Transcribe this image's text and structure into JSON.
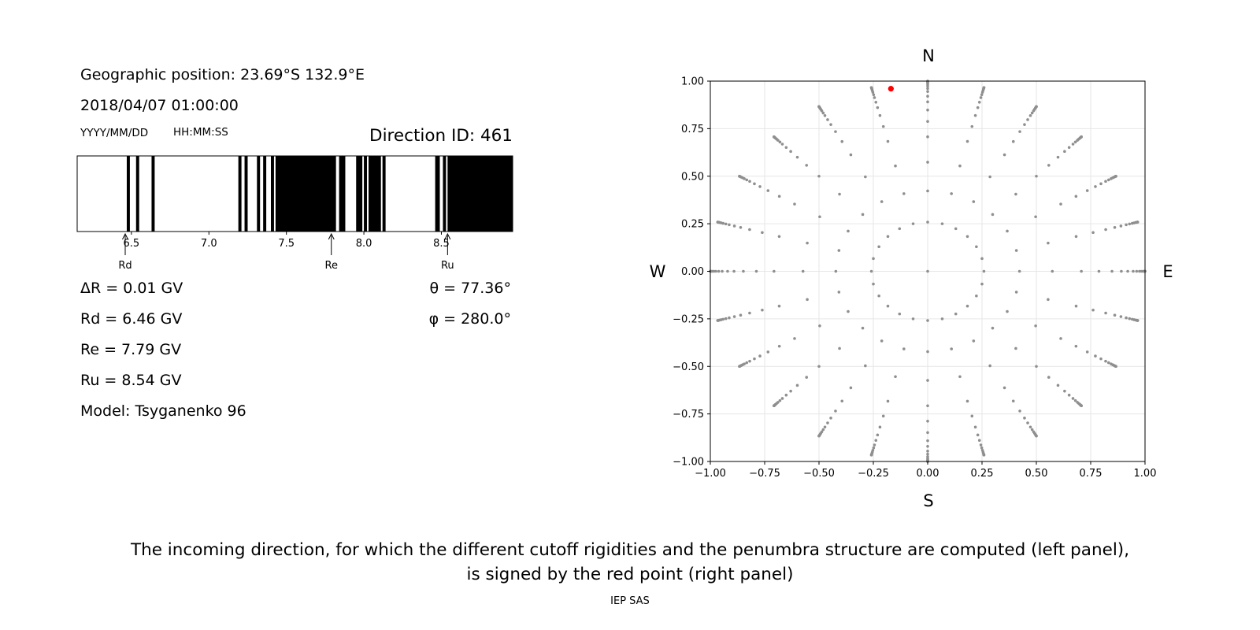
{
  "info": {
    "geo_position": "Geographic position: 23.69°S 132.9°E",
    "datetime": "2018/04/07 01:00:00",
    "date_format": "YYYY/MM/DD",
    "time_format": "HH:MM:SS",
    "direction_id": "Direction ID: 461",
    "delta_r": "ΔR = 0.01 GV",
    "rd": "Rd = 6.46 GV",
    "re": "Re = 7.79 GV",
    "ru": "Ru = 8.54 GV",
    "model": "Model: Tsyganenko 96",
    "theta": "θ = 77.36°",
    "phi": "φ = 280.0°"
  },
  "caption": {
    "line1": "The incoming direction, for which the different cutoff rigidities and the penumbra structure are computed (left panel),",
    "line2": "is signed by the red point (right panel)"
  },
  "footer": "IEP SAS",
  "chart_data": [
    {
      "type": "penumbra",
      "xlim": [
        6.15,
        8.96
      ],
      "xticks": [
        6.5,
        7.0,
        7.5,
        8.0,
        8.5
      ],
      "tick_labels": [
        "6.5",
        "7.0",
        "7.5",
        "8.0",
        "8.5"
      ],
      "forbidden_bands": [
        [
          6.47,
          6.49
        ],
        [
          6.53,
          6.55
        ],
        [
          6.63,
          6.65
        ],
        [
          7.19,
          7.21
        ],
        [
          7.23,
          7.25
        ],
        [
          7.31,
          7.33
        ],
        [
          7.35,
          7.37
        ],
        [
          7.4,
          7.42
        ],
        [
          7.43,
          7.82
        ],
        [
          7.84,
          7.88
        ],
        [
          7.95,
          7.99
        ],
        [
          8.0,
          8.02
        ],
        [
          8.03,
          8.11
        ],
        [
          8.12,
          8.14
        ],
        [
          8.46,
          8.49
        ],
        [
          8.51,
          8.53
        ],
        [
          8.54,
          8.96
        ]
      ],
      "markers": [
        {
          "label": "Rd",
          "value": 6.46
        },
        {
          "label": "Re",
          "value": 7.79
        },
        {
          "label": "Ru",
          "value": 8.54
        }
      ],
      "colors": {
        "forbidden": "#000000",
        "allowed": "#ffffff"
      }
    },
    {
      "type": "scatter",
      "xlim": [
        -1.0,
        1.0
      ],
      "ylim": [
        -1.0,
        1.0
      ],
      "xticks": [
        -1.0,
        -0.75,
        -0.5,
        -0.25,
        0.0,
        0.25,
        0.5,
        0.75,
        1.0
      ],
      "yticks": [
        -1.0,
        -0.75,
        -0.5,
        -0.25,
        0.0,
        0.25,
        0.5,
        0.75,
        1.0
      ],
      "tick_labels": [
        "−1.00",
        "−0.75",
        "−0.50",
        "−0.25",
        "0.00",
        "0.25",
        "0.50",
        "0.75",
        "1.00"
      ],
      "grid": true,
      "compass": {
        "north": "N",
        "south": "S",
        "west": "W",
        "east": "E"
      },
      "direction_grid": {
        "azimuth_step_deg": 15,
        "zenith_angles_deg": [
          0,
          15,
          25,
          35,
          45,
          52,
          58,
          63,
          67,
          71,
          74,
          77,
          79.5,
          82,
          84,
          86,
          88,
          89.5,
          90
        ],
        "color": "#8f8f8f"
      },
      "highlight": {
        "x": -0.169,
        "y": 0.96,
        "color": "#ff0000"
      }
    }
  ]
}
